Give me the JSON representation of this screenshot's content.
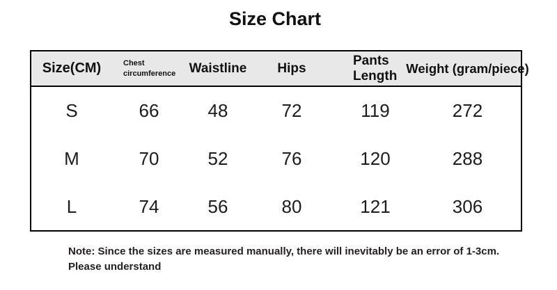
{
  "title": "Size Chart",
  "chart_data": {
    "type": "table",
    "title": "Size Chart",
    "columns": [
      "Size(CM)",
      "Chest circumference",
      "Waistline",
      "Hips",
      "Pants Length",
      "Weight (gram/piece)"
    ],
    "rows": [
      {
        "size": "S",
        "values": [
          66,
          48,
          72,
          119,
          272
        ]
      },
      {
        "size": "M",
        "values": [
          70,
          52,
          76,
          120,
          288
        ]
      },
      {
        "size": "L",
        "values": [
          74,
          56,
          80,
          121,
          306
        ]
      }
    ]
  },
  "note": {
    "line1": "Note: Since the sizes are measured manually, there will inevitably be an error of 1-3cm.",
    "line2": "Please understand"
  },
  "colors": {
    "header_bg": "#e8e8e8",
    "border": "#000000",
    "text": "#1a1a1a",
    "note_text": "#231f20"
  }
}
